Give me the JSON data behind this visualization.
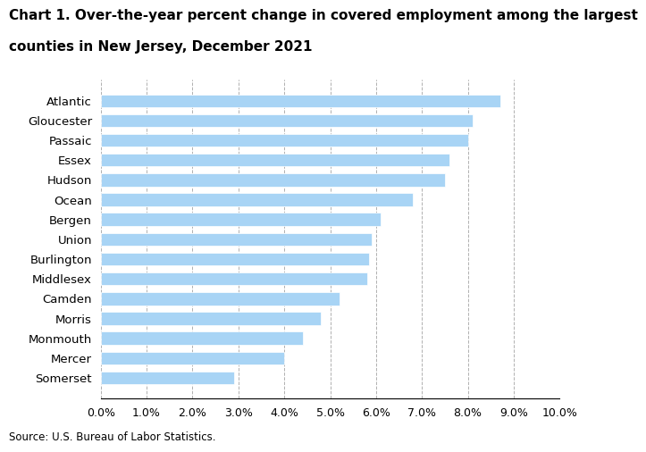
{
  "title_line1": "Chart 1. Over-the-year percent change in covered employment among the largest",
  "title_line2": "counties in New Jersey, December 2021",
  "categories": [
    "Atlantic",
    "Gloucester",
    "Passaic",
    "Essex",
    "Hudson",
    "Ocean",
    "Bergen",
    "Union",
    "Burlington",
    "Middlesex",
    "Camden",
    "Morris",
    "Monmouth",
    "Mercer",
    "Somerset"
  ],
  "values": [
    8.7,
    8.1,
    8.0,
    7.6,
    7.5,
    6.8,
    6.1,
    5.9,
    5.85,
    5.8,
    5.2,
    4.8,
    4.4,
    4.0,
    2.9
  ],
  "bar_color": "#a8d4f5",
  "xlim": [
    0,
    10.0
  ],
  "xticks": [
    0.0,
    1.0,
    2.0,
    3.0,
    4.0,
    5.0,
    6.0,
    7.0,
    8.0,
    9.0,
    10.0
  ],
  "xtick_labels": [
    "0.0%",
    "1.0%",
    "2.0%",
    "3.0%",
    "4.0%",
    "5.0%",
    "6.0%",
    "7.0%",
    "8.0%",
    "9.0%",
    "10.0%"
  ],
  "source": "Source: U.S. Bureau of Labor Statistics.",
  "bg_color": "#ffffff",
  "grid_color": "#b0b0b0",
  "title_fontsize": 11,
  "label_fontsize": 9.5,
  "tick_fontsize": 9
}
